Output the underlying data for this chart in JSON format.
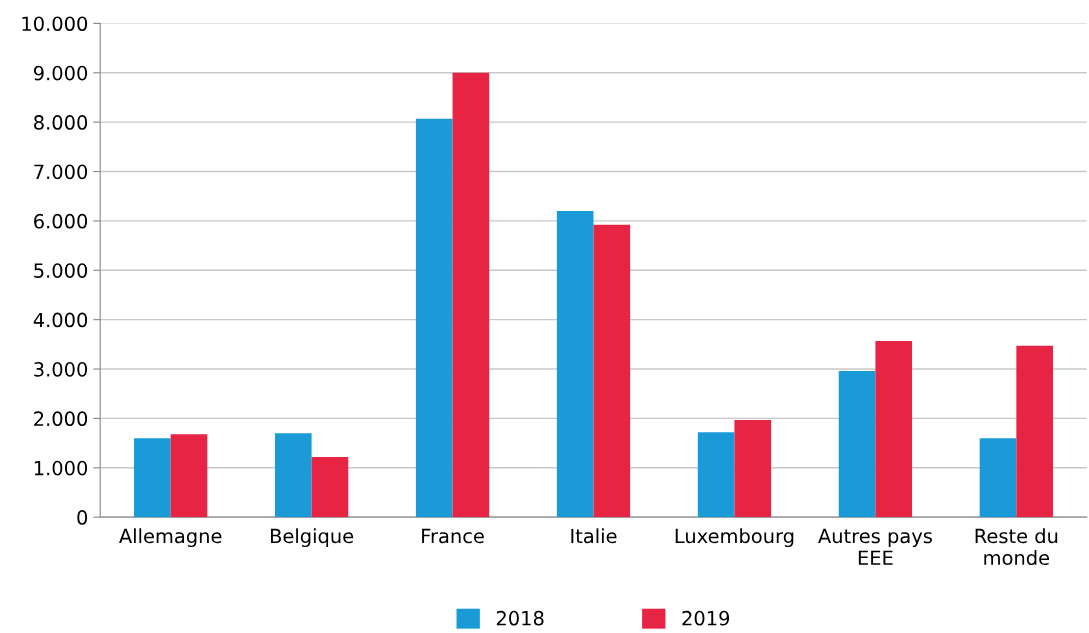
{
  "chart_data": {
    "type": "bar",
    "categories": [
      "Allemagne",
      "Belgique",
      "France",
      "Italie",
      "Luxembourg",
      "Autres pays\nEEE",
      "Reste du\nmonde"
    ],
    "series": [
      {
        "name": "2018",
        "color": "#1a9bd7",
        "values": [
          1600,
          1700,
          8070,
          6200,
          1720,
          2960,
          1600
        ]
      },
      {
        "name": "2019",
        "color": "#e82445",
        "values": [
          1680,
          1220,
          9000,
          5920,
          1970,
          3570,
          3470
        ]
      }
    ],
    "ylim": [
      0,
      10000
    ],
    "yticks": [
      {
        "value": 0,
        "label": "0"
      },
      {
        "value": 1000,
        "label": "1.000"
      },
      {
        "value": 2000,
        "label": "2.000"
      },
      {
        "value": 3000,
        "label": "3.000"
      },
      {
        "value": 4000,
        "label": "4.000"
      },
      {
        "value": 5000,
        "label": "5.000"
      },
      {
        "value": 6000,
        "label": "6.000"
      },
      {
        "value": 7000,
        "label": "7.000"
      },
      {
        "value": 8000,
        "label": "8.000"
      },
      {
        "value": 9000,
        "label": "9.000"
      },
      {
        "value": 10000,
        "label": "10.000"
      }
    ],
    "grid": "y",
    "legend": "bottom"
  }
}
